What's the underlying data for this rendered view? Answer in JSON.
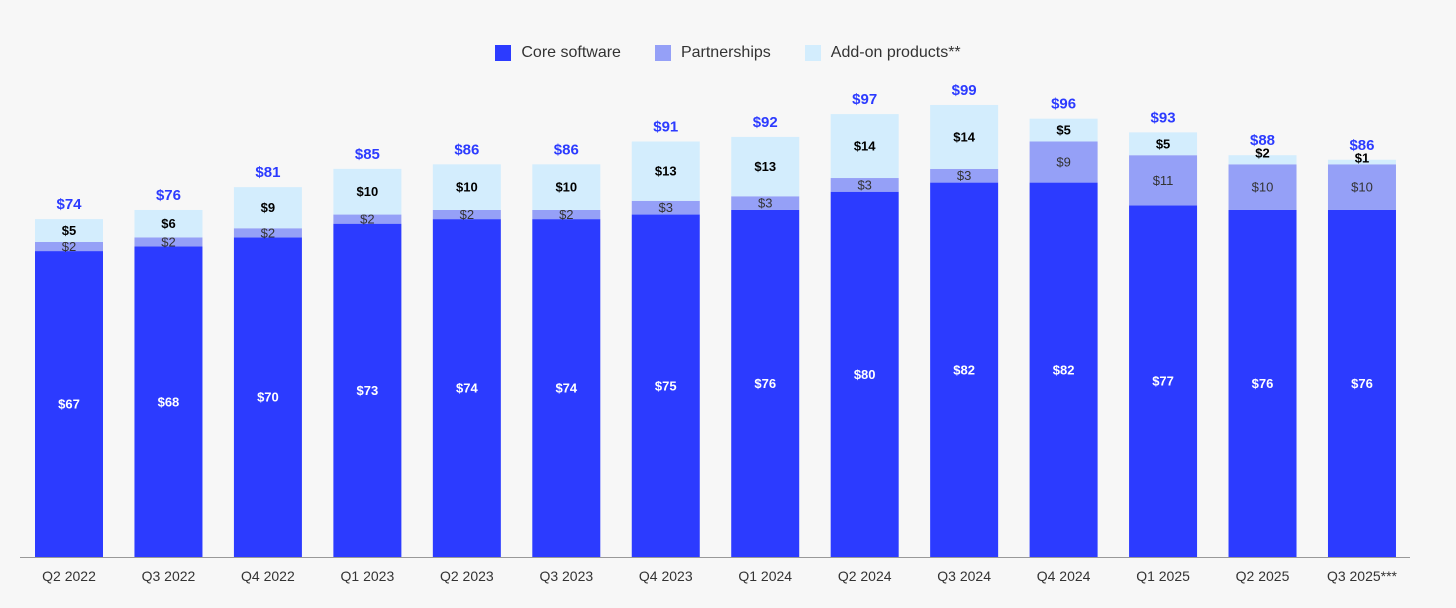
{
  "chart_data": {
    "type": "bar",
    "stacked": true,
    "title": "",
    "xlabel": "",
    "ylabel": "",
    "ylim": [
      0,
      120
    ],
    "grid": false,
    "legend_position": "top-center",
    "categories": [
      "Q2 2022",
      "Q3 2022",
      "Q4 2022",
      "Q1 2023",
      "Q2 2023",
      "Q3 2023",
      "Q4 2023",
      "Q1 2024",
      "Q2 2024",
      "Q3 2024",
      "Q4 2024",
      "Q1 2025",
      "Q2 2025",
      "Q3 2025***"
    ],
    "series": [
      {
        "name": "Core software",
        "color": "#2c3bff",
        "values": [
          67,
          68,
          70,
          73,
          74,
          74,
          75,
          76,
          80,
          82,
          82,
          77,
          76,
          76
        ]
      },
      {
        "name": "Partnerships",
        "color": "#95a0f7",
        "values": [
          2,
          2,
          2,
          2,
          2,
          2,
          3,
          3,
          3,
          3,
          9,
          11,
          10,
          10
        ]
      },
      {
        "name": "Add-on products**",
        "color": "#d3edfd",
        "values": [
          5,
          6,
          9,
          10,
          10,
          10,
          13,
          13,
          14,
          14,
          5,
          5,
          2,
          1
        ]
      }
    ],
    "totals": [
      74,
      76,
      81,
      85,
      86,
      86,
      91,
      92,
      97,
      99,
      96,
      93,
      88,
      86
    ],
    "value_prefix": "$",
    "total_color": "#2c3bff"
  }
}
